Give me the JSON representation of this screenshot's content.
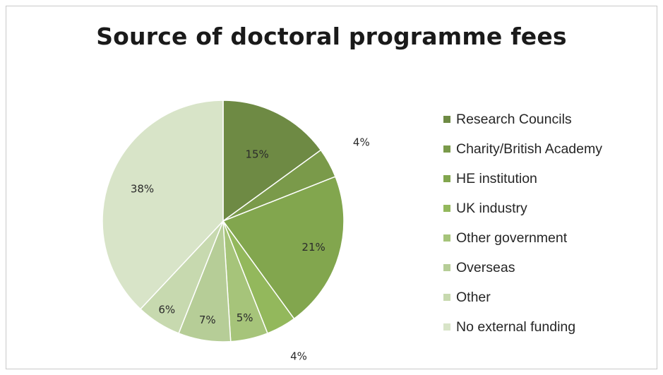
{
  "chart_data": {
    "type": "pie",
    "title": "Source of doctoral programme fees",
    "legend_position": "right",
    "start_angle_deg": 0,
    "direction": "clockwise",
    "slices": [
      {
        "label": "Research Councils",
        "value": 15,
        "display": "15%",
        "color": "#6e8a44"
      },
      {
        "label": "Charity/British Academy",
        "value": 4,
        "display": "4%",
        "color": "#7a9a4a"
      },
      {
        "label": "HE institution",
        "value": 21,
        "display": "21%",
        "color": "#82a64e"
      },
      {
        "label": "UK industry",
        "value": 4,
        "display": "4%",
        "color": "#93b85c"
      },
      {
        "label": "Other government",
        "value": 5,
        "display": "5%",
        "color": "#a6c47a"
      },
      {
        "label": "Overseas",
        "value": 7,
        "display": "7%",
        "color": "#b6cd97"
      },
      {
        "label": "Other",
        "value": 6,
        "display": "6%",
        "color": "#c7d9af"
      },
      {
        "label": "No external funding",
        "value": 38,
        "display": "38%",
        "color": "#d8e4c8"
      }
    ]
  }
}
